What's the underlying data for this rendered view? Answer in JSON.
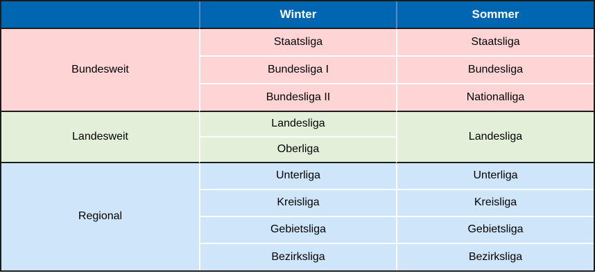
{
  "header": {
    "region": "",
    "winter": "Winter",
    "sommer": "Sommer"
  },
  "sections": {
    "bundesweit": {
      "label": "Bundesweit",
      "rows": [
        {
          "winter": "Staatsliga",
          "sommer": "Staatsliga"
        },
        {
          "winter": "Bundesliga I",
          "sommer": "Bundesliga"
        },
        {
          "winter": "Bundesliga II",
          "sommer": "Nationalliga"
        }
      ]
    },
    "landesweit": {
      "label": "Landesweit",
      "winter_rows": [
        "Landesliga",
        "Oberliga"
      ],
      "sommer_merged": "Landesliga"
    },
    "regional": {
      "label": "Regional",
      "rows": [
        {
          "winter": "Unterliga",
          "sommer": "Unterliga"
        },
        {
          "winter": "Kreisliga",
          "sommer": "Kreisliga"
        },
        {
          "winter": "Gebietsliga",
          "sommer": "Gebietsliga"
        },
        {
          "winter": "Bezirksliga",
          "sommer": "Bezirksliga"
        }
      ]
    }
  },
  "colors": {
    "header_bg": "#0066b2",
    "header_text": "#ffffff",
    "header_divider": "#4f8cc4",
    "bundesweit_bg": "#ffd4d4",
    "landesweit_bg": "#e4efd9",
    "regional_bg": "#cfe5fa",
    "cell_divider": "#ffffff",
    "border_dark": "#1c1c1c",
    "body_text": "#000000"
  },
  "chart_data": {
    "type": "table",
    "columns": [
      "",
      "Winter",
      "Sommer"
    ],
    "rows": [
      [
        "Bundesweit",
        "Staatsliga",
        "Staatsliga"
      ],
      [
        "Bundesweit",
        "Bundesliga I",
        "Bundesliga"
      ],
      [
        "Bundesweit",
        "Bundesliga II",
        "Nationalliga"
      ],
      [
        "Landesweit",
        "Landesliga",
        "Landesliga"
      ],
      [
        "Landesweit",
        "Oberliga",
        "Landesliga"
      ],
      [
        "Regional",
        "Unterliga",
        "Unterliga"
      ],
      [
        "Regional",
        "Kreisliga",
        "Kreisliga"
      ],
      [
        "Regional",
        "Gebietsliga",
        "Gebietsliga"
      ],
      [
        "Regional",
        "Bezirksliga",
        "Bezirksliga"
      ]
    ],
    "merged_cells": [
      {
        "col": 0,
        "row_start": 0,
        "row_span": 3,
        "value": "Bundesweit"
      },
      {
        "col": 0,
        "row_start": 3,
        "row_span": 2,
        "value": "Landesweit"
      },
      {
        "col": 2,
        "row_start": 3,
        "row_span": 2,
        "value": "Landesliga"
      },
      {
        "col": 0,
        "row_start": 5,
        "row_span": 4,
        "value": "Regional"
      }
    ],
    "row_group_colors": {
      "Bundesweit": "#ffd4d4",
      "Landesweit": "#e4efd9",
      "Regional": "#cfe5fa"
    },
    "header_style": {
      "bg": "#0066b2",
      "text": "#ffffff",
      "bold": true
    }
  }
}
